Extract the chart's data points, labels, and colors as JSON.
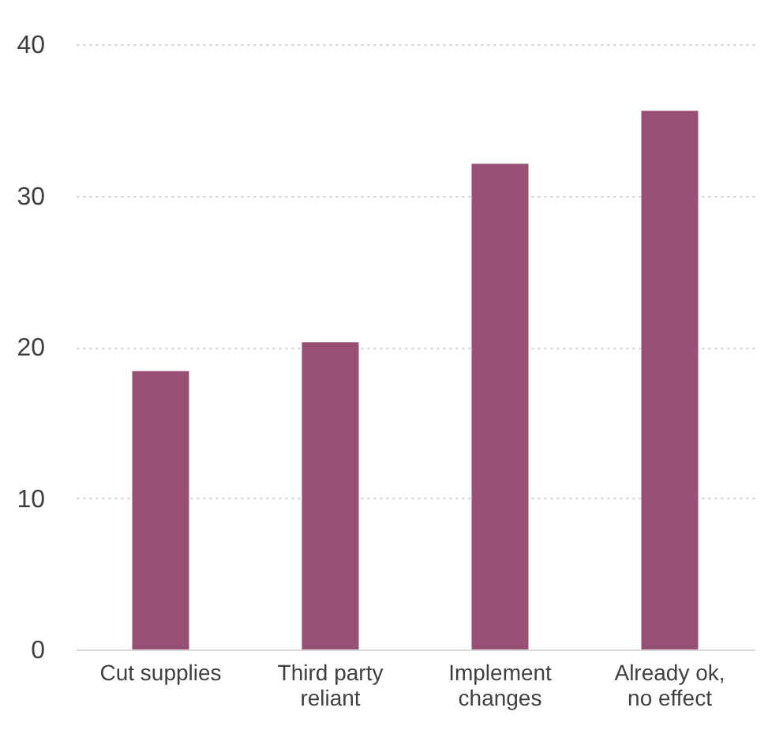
{
  "chart_data": {
    "type": "bar",
    "categories": [
      "Cut supplies",
      "Third party reliant",
      "Implement changes",
      "Already ok, no effect"
    ],
    "values": [
      18.4,
      20.3,
      32.1,
      35.6
    ],
    "color": "#984f74",
    "ylim": [
      0,
      40
    ],
    "yticks": [
      0,
      10,
      20,
      30,
      40
    ],
    "grid": "y"
  }
}
